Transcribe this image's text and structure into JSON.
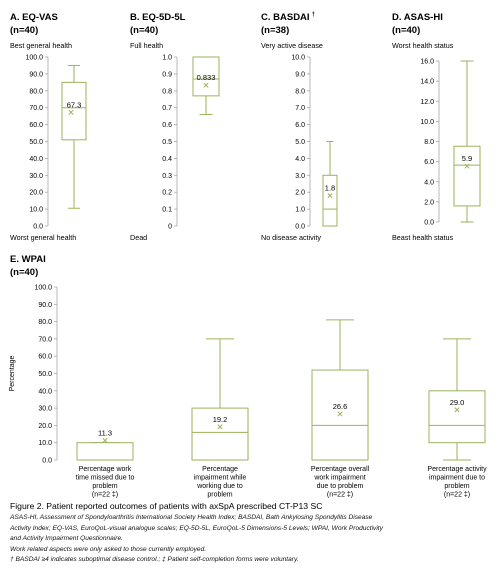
{
  "colors": {
    "box": "#9bb35a",
    "mean": "#9bb35a",
    "axis": "#a6a6a6",
    "text": "#000000"
  },
  "chart_data": [
    {
      "type": "box",
      "panel_title": "A. EQ-VAS",
      "n_label": "(n=40)",
      "top_label": "Best general health",
      "bottom_label": "Worst general health",
      "yticks": [
        "100.0",
        "90.0",
        "80.0",
        "70.0",
        "60.0",
        "50.0",
        "40.0",
        "30.0",
        "20.0",
        "10.0",
        "0.0"
      ],
      "ylim": [
        0,
        100
      ],
      "boxes": [
        {
          "min": 10.5,
          "q1": 51,
          "median": 70,
          "q3": 85,
          "max": 95,
          "mean": 67.3,
          "mean_label": "67.3"
        }
      ]
    },
    {
      "type": "box",
      "panel_title": "B. EQ-5D-5L",
      "n_label": "(n=40)",
      "top_label": "Full health",
      "bottom_label": "Dead",
      "yticks": [
        "1.0",
        "0.9",
        "0.8",
        "0.7",
        "0.6",
        "0.5",
        "0.4",
        "0.3",
        "0.2",
        "0.1",
        "0"
      ],
      "ylim": [
        0,
        1
      ],
      "boxes": [
        {
          "min": 0.66,
          "q1": 0.77,
          "median": 0.87,
          "q3": 1.0,
          "max": 1.0,
          "mean": 0.833,
          "mean_label": "0.833"
        }
      ]
    },
    {
      "type": "box",
      "panel_title": "C. BASDAI",
      "title_mark": "†",
      "n_label": "(n=38)",
      "top_label": "Very active disease",
      "bottom_label": "No disease activity",
      "yticks": [
        "10.0",
        "9.0",
        "8.0",
        "7.0",
        "6.0",
        "5.0",
        "4.0",
        "3.0",
        "2.0",
        "1.0",
        "0.0"
      ],
      "ylim": [
        0,
        10
      ],
      "boxes": [
        {
          "min": 0,
          "q1": 0,
          "median": 1.0,
          "q3": 3.0,
          "max": 5.0,
          "mean": 1.8,
          "mean_label": "1.8"
        }
      ]
    },
    {
      "type": "box",
      "panel_title": "D. ASAS-HI",
      "n_label": "(n=40)",
      "top_label": "Worst health status",
      "bottom_label": "Beast health status",
      "yticks": [
        "16.0",
        "14.0",
        "12.0",
        "10.0",
        "8.0",
        "6.0",
        "4.0",
        "2.0",
        "0.0"
      ],
      "ylim": [
        0,
        17
      ],
      "boxes": [
        {
          "min": 0,
          "q1": 1.7,
          "median": 6.0,
          "q3": 8.0,
          "max": 17.0,
          "mean": 5.9,
          "mean_label": "5.9"
        }
      ]
    },
    {
      "type": "box",
      "panel_title": "E. WPAI",
      "n_label": "(n=40)",
      "ylabel": "Percentage",
      "yticks": [
        "100.0",
        "90.0",
        "80.0",
        "70.0",
        "60.0",
        "50.0",
        "40.0",
        "30.0",
        "20.0",
        "10.0",
        "0.0"
      ],
      "ylim": [
        0,
        100
      ],
      "boxes": [
        {
          "min": 0,
          "q1": 0,
          "median": 0,
          "q3": 10,
          "max": 10,
          "mean": 11.3,
          "mean_label": "11.3",
          "category_lines": [
            "Percentage  work",
            "time missed due to",
            "problem",
            "(n=22 ‡)"
          ]
        },
        {
          "min": 0,
          "q1": 0,
          "median": 16,
          "q3": 30,
          "max": 70,
          "mean": 19.2,
          "mean_label": "19.2",
          "category_lines": [
            "Percentage",
            "impairment  while",
            "working due to",
            "problem"
          ]
        },
        {
          "min": 0,
          "q1": 0,
          "median": 20,
          "q3": 52,
          "max": 81,
          "mean": 26.6,
          "mean_label": "26.6",
          "category_lines": [
            "Percentage  overall",
            "work impairment",
            "due to problem",
            "(n=22 ‡)"
          ]
        },
        {
          "min": 0,
          "q1": 10,
          "median": 20,
          "q3": 40,
          "max": 70,
          "mean": 29.0,
          "mean_label": "29.0",
          "category_lines": [
            "Percentage  activity",
            "impairment  due to",
            "problem",
            "(n=22 ‡)"
          ]
        }
      ]
    }
  ],
  "caption": {
    "title": "Figure 2. Patient reported outcomes of patients with axSpA prescribed CT-P13 SC",
    "lines": [
      " ASAS-HI, Assessment of Spondyloarthritis International Society Health Index; BASDAI, Bath Ankylosing Spondylitis Disease",
      "Activity Index; EQ-VAS, EuroQoL-visual analogue scales; EQ-5D-5L, EuroQoL-5 Dimensions-5 Levels; WPAI, Work Productivity",
      "and Activity Impairment Questionnaire.",
      "Work related aspects were only asked to those currently employed.",
      "† BASDAI ≥4 indicates suboptimal disease control.; ‡ Patient self-completion forms were voluntary."
    ]
  }
}
